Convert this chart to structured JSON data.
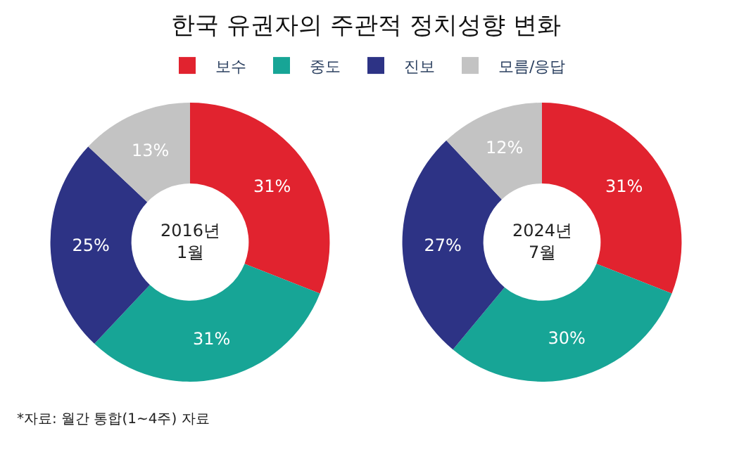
{
  "chart_data": {
    "type": "donut",
    "title": "한국 유권자의 주관적 정치성향 변화",
    "categories": [
      "보수",
      "중도",
      "진보",
      "모름/응답"
    ],
    "colors": [
      "#e1232f",
      "#17a596",
      "#2d3385",
      "#c3c3c3"
    ],
    "legend": "top",
    "series": [
      {
        "name": "2016년\n1월",
        "values": [
          31,
          31,
          25,
          13
        ],
        "value_labels": [
          "31%",
          "31%",
          "25%",
          "13%"
        ]
      },
      {
        "name": "2024년\n7월",
        "values": [
          31,
          30,
          27,
          12
        ],
        "value_labels": [
          "31%",
          "30%",
          "27%",
          "12%"
        ]
      }
    ],
    "annotations": [
      "*자료: 월간 통합(1~4주) 자료"
    ]
  }
}
